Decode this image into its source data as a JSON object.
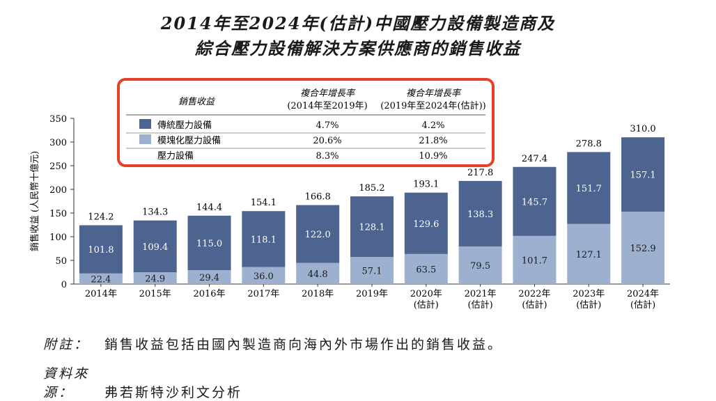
{
  "title_line1": "2014年至2024年(估計)中國壓力設備製造商及",
  "title_line2": "綜合壓力設備解決方案供應商的銷售收益",
  "legend_table": {
    "header_label": "銷售收益",
    "col1_title": "複合年增長率",
    "col1_sub": "(2014年至2019年)",
    "col2_title": "複合年增長率",
    "col2_sub": "(2019年至2024年(估計))",
    "rows": [
      {
        "label": "傳統壓力設備",
        "color": "#4d6490",
        "cagr1": "4.7%",
        "cagr2": "4.2%"
      },
      {
        "label": "模塊化壓力設備",
        "color": "#9eb0cf",
        "cagr1": "20.6%",
        "cagr2": "21.8%"
      },
      {
        "label": "壓力設備",
        "color": "",
        "cagr1": "8.3%",
        "cagr2": "10.9%"
      }
    ]
  },
  "chart_data": {
    "type": "bar",
    "stacked": true,
    "ylabel": "銷售收益 (人民幣十億元)",
    "ylim": [
      0,
      350
    ],
    "yticks": [
      0,
      50,
      100,
      150,
      200,
      250,
      300,
      350
    ],
    "categories": [
      {
        "year": "2014年",
        "sub": ""
      },
      {
        "year": "2015年",
        "sub": ""
      },
      {
        "year": "2016年",
        "sub": ""
      },
      {
        "year": "2017年",
        "sub": ""
      },
      {
        "year": "2018年",
        "sub": ""
      },
      {
        "year": "2019年",
        "sub": ""
      },
      {
        "year": "2020年",
        "sub": "(估計)"
      },
      {
        "year": "2021年",
        "sub": "(估計)"
      },
      {
        "year": "2022年",
        "sub": "(估計)"
      },
      {
        "year": "2023年",
        "sub": "(估計)"
      },
      {
        "year": "2024年",
        "sub": "(估計)"
      }
    ],
    "series": [
      {
        "name": "模塊化壓力設備",
        "color": "#9eb0cf",
        "values": [
          22.4,
          24.9,
          29.4,
          36.0,
          44.8,
          57.1,
          63.5,
          79.5,
          101.7,
          127.1,
          152.9
        ],
        "labels": [
          "22.4",
          "24.9",
          "29.4",
          "36.0",
          "44.8",
          "57.1",
          "63.5",
          "79.5",
          "101.7",
          "127.1",
          "152.9"
        ]
      },
      {
        "name": "傳統壓力設備",
        "color": "#4d6490",
        "values": [
          101.8,
          109.4,
          115.0,
          118.1,
          122.0,
          128.1,
          129.6,
          138.3,
          145.7,
          151.7,
          157.1
        ],
        "labels": [
          "101.8",
          "109.4",
          "115.0",
          "118.1",
          "122.0",
          "128.1",
          "129.6",
          "138.3",
          "145.7",
          "151.7",
          "157.1"
        ]
      }
    ],
    "totals": [
      124.2,
      134.3,
      144.4,
      154.1,
      166.8,
      185.2,
      193.1,
      217.8,
      247.4,
      278.8,
      310.0
    ],
    "total_labels": [
      "124.2",
      "134.3",
      "144.4",
      "154.1",
      "166.8",
      "185.2",
      "193.1",
      "217.8",
      "247.4",
      "278.8",
      "310.0"
    ]
  },
  "notes": {
    "note_label": "附註：",
    "note_text": "銷售收益包括由國內製造商向海內外市場作出的銷售收益。",
    "source_label": "資料來源：",
    "source_text": "弗若斯特沙利文分析"
  }
}
